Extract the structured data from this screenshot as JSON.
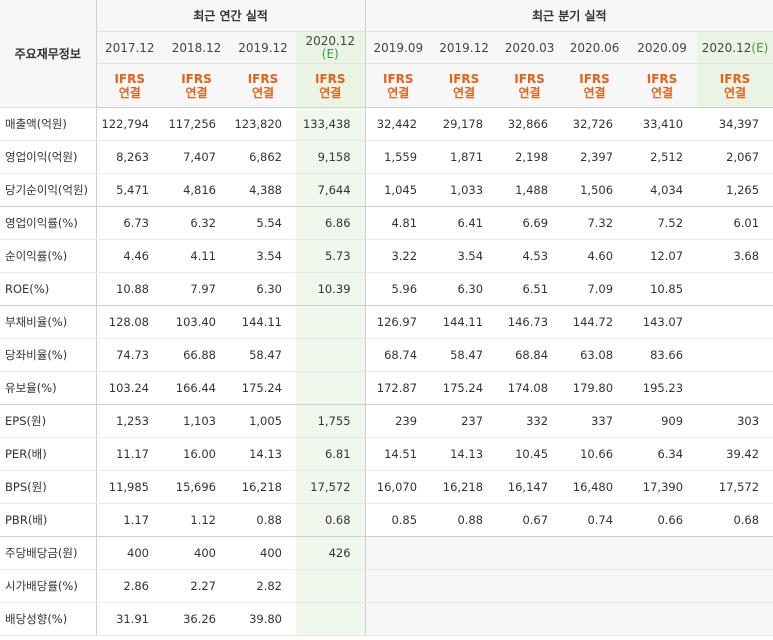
{
  "header": {
    "corner_label": "주요재무정보",
    "annual_title": "최근 연간 실적",
    "quarterly_title": "최근 분기 실적"
  },
  "annual_periods": [
    {
      "label": "2017.12",
      "est": ""
    },
    {
      "label": "2018.12",
      "est": ""
    },
    {
      "label": "2019.12",
      "est": ""
    },
    {
      "label": "2020.12",
      "est": "(E)"
    }
  ],
  "quarterly_periods": [
    {
      "label": "2019.09",
      "est": ""
    },
    {
      "label": "2019.12",
      "est": ""
    },
    {
      "label": "2020.03",
      "est": ""
    },
    {
      "label": "2020.06",
      "est": ""
    },
    {
      "label": "2020.09",
      "est": ""
    },
    {
      "label": "2020.12",
      "est": "(E)"
    }
  ],
  "ifrs": {
    "line1": "IFRS",
    "line2": "연결"
  },
  "rows": [
    {
      "label": "매출액(억원)",
      "annual": [
        "122,794",
        "117,256",
        "123,820",
        "133,438"
      ],
      "quarterly": [
        "32,442",
        "29,178",
        "32,866",
        "32,726",
        "33,410",
        "34,397"
      ]
    },
    {
      "label": "영업이익(억원)",
      "annual": [
        "8,263",
        "7,407",
        "6,862",
        "9,158"
      ],
      "quarterly": [
        "1,559",
        "1,871",
        "2,198",
        "2,397",
        "2,512",
        "2,067"
      ]
    },
    {
      "label": "당기순이익(억원)",
      "annual": [
        "5,471",
        "4,816",
        "4,388",
        "7,644"
      ],
      "quarterly": [
        "1,045",
        "1,033",
        "1,488",
        "1,506",
        "4,034",
        "1,265"
      ]
    },
    {
      "label": "영업이익률(%)",
      "annual": [
        "6.73",
        "6.32",
        "5.54",
        "6.86"
      ],
      "quarterly": [
        "4.81",
        "6.41",
        "6.69",
        "7.32",
        "7.52",
        "6.01"
      ]
    },
    {
      "label": "순이익률(%)",
      "annual": [
        "4.46",
        "4.11",
        "3.54",
        "5.73"
      ],
      "quarterly": [
        "3.22",
        "3.54",
        "4.53",
        "4.60",
        "12.07",
        "3.68"
      ]
    },
    {
      "label": "ROE(%)",
      "annual": [
        "10.88",
        "7.97",
        "6.30",
        "10.39"
      ],
      "quarterly": [
        "5.96",
        "6.30",
        "6.51",
        "7.09",
        "10.85",
        ""
      ]
    },
    {
      "label": "부채비율(%)",
      "annual": [
        "128.08",
        "103.40",
        "144.11",
        ""
      ],
      "quarterly": [
        "126.97",
        "144.11",
        "146.73",
        "144.72",
        "143.07",
        ""
      ]
    },
    {
      "label": "당좌비율(%)",
      "annual": [
        "74.73",
        "66.88",
        "58.47",
        ""
      ],
      "quarterly": [
        "68.74",
        "58.47",
        "68.84",
        "63.08",
        "83.66",
        ""
      ]
    },
    {
      "label": "유보율(%)",
      "annual": [
        "103.24",
        "166.44",
        "175.24",
        ""
      ],
      "quarterly": [
        "172.87",
        "175.24",
        "174.08",
        "179.80",
        "195.23",
        ""
      ]
    },
    {
      "label": "EPS(원)",
      "annual": [
        "1,253",
        "1,103",
        "1,005",
        "1,755"
      ],
      "quarterly": [
        "239",
        "237",
        "332",
        "337",
        "909",
        "303"
      ]
    },
    {
      "label": "PER(배)",
      "annual": [
        "11.17",
        "16.00",
        "14.13",
        "6.81"
      ],
      "quarterly": [
        "14.51",
        "14.13",
        "10.45",
        "10.66",
        "6.34",
        "39.42"
      ]
    },
    {
      "label": "BPS(원)",
      "annual": [
        "11,985",
        "15,696",
        "16,218",
        "17,572"
      ],
      "quarterly": [
        "16,070",
        "16,218",
        "16,147",
        "16,480",
        "17,390",
        "17,572"
      ]
    },
    {
      "label": "PBR(배)",
      "annual": [
        "1.17",
        "1.12",
        "0.88",
        "0.68"
      ],
      "quarterly": [
        "0.85",
        "0.88",
        "0.67",
        "0.74",
        "0.66",
        "0.68"
      ]
    },
    {
      "label": "주당배당금(원)",
      "annual": [
        "400",
        "400",
        "400",
        "426"
      ],
      "quarterly": null
    },
    {
      "label": "시가배당률(%)",
      "annual": [
        "2.86",
        "2.27",
        "2.82",
        ""
      ],
      "quarterly": null
    },
    {
      "label": "배당성향(%)",
      "annual": [
        "31.91",
        "36.26",
        "39.80",
        ""
      ],
      "quarterly": null
    }
  ],
  "group_end_rows": [
    2,
    5,
    8,
    12
  ],
  "colors": {
    "ifrs": "#e8611a",
    "estimate_text": "#3a9a3a",
    "estimate_bg": "#f0f7ec",
    "header_bg": "#f7f7f7",
    "border": "#cfcfcf"
  }
}
